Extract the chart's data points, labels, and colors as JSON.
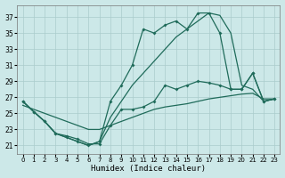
{
  "bg_color": "#cce8e8",
  "grid_color": "#aacccc",
  "line_color": "#1f6b5a",
  "xlabel": "Humidex (Indice chaleur)",
  "xlim": [
    -0.5,
    23.5
  ],
  "ylim": [
    20,
    38.5
  ],
  "yticks": [
    21,
    23,
    25,
    27,
    29,
    31,
    33,
    35,
    37
  ],
  "xticks": [
    0,
    1,
    2,
    3,
    4,
    5,
    6,
    7,
    8,
    9,
    10,
    11,
    12,
    13,
    14,
    15,
    16,
    17,
    18,
    19,
    20,
    21,
    22,
    23
  ],
  "lines": [
    {
      "x": [
        0,
        1,
        2,
        3,
        4,
        5,
        6,
        7,
        8,
        9,
        10,
        11,
        12,
        13,
        14,
        15,
        16,
        17,
        18,
        19,
        20,
        21,
        22,
        23
      ],
      "y": [
        26.5,
        25.2,
        24.0,
        22.5,
        22.0,
        21.5,
        21.0,
        21.5,
        24.5,
        26.5,
        28.5,
        30.0,
        31.5,
        33.0,
        34.5,
        35.5,
        36.5,
        37.5,
        37.2,
        35.0,
        28.5,
        28.0,
        26.5,
        26.8
      ],
      "marker": false
    },
    {
      "x": [
        0,
        1,
        2,
        3,
        4,
        5,
        6,
        7,
        8,
        9,
        10,
        11,
        12,
        13,
        14,
        15,
        16,
        17,
        18,
        19,
        20,
        21,
        22,
        23
      ],
      "y": [
        26.5,
        25.2,
        24.0,
        22.5,
        22.0,
        21.5,
        21.0,
        21.5,
        26.5,
        28.5,
        31.0,
        35.5,
        35.0,
        36.0,
        36.5,
        35.5,
        37.5,
        37.5,
        35.0,
        28.0,
        28.0,
        30.0,
        26.5,
        26.8
      ],
      "marker": true
    },
    {
      "x": [
        0,
        1,
        2,
        3,
        4,
        5,
        6,
        7,
        8,
        9,
        10,
        11,
        12,
        13,
        14,
        15,
        16,
        17,
        18,
        19,
        20,
        21,
        22,
        23
      ],
      "y": [
        26.0,
        25.5,
        25.0,
        24.5,
        24.0,
        23.5,
        23.0,
        23.0,
        23.5,
        24.0,
        24.5,
        25.0,
        25.5,
        25.8,
        26.0,
        26.2,
        26.5,
        26.8,
        27.0,
        27.2,
        27.4,
        27.5,
        26.8,
        26.8
      ],
      "marker": false
    },
    {
      "x": [
        0,
        1,
        2,
        3,
        4,
        5,
        6,
        7,
        8,
        9,
        10,
        11,
        12,
        13,
        14,
        15,
        16,
        17,
        18,
        19,
        20,
        21,
        22,
        23
      ],
      "y": [
        26.5,
        25.2,
        24.0,
        22.5,
        22.2,
        21.8,
        21.2,
        21.2,
        23.5,
        25.5,
        25.5,
        25.8,
        26.5,
        28.5,
        28.0,
        28.5,
        29.0,
        28.8,
        28.5,
        28.0,
        28.0,
        30.0,
        26.5,
        26.8
      ],
      "marker": true
    }
  ]
}
